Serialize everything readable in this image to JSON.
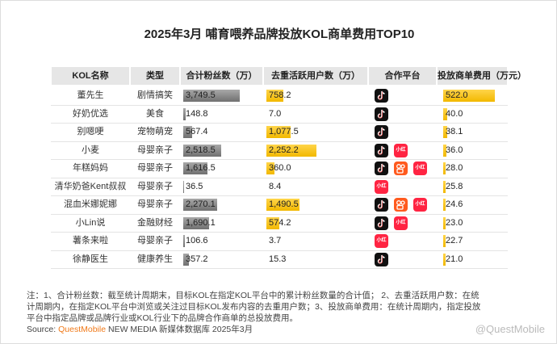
{
  "title": "2025年3月 哺育喂养品牌投放KOL商单费用TOP10",
  "table": {
    "headers": [
      "KOL名称",
      "类型",
      "合计粉丝数（万）",
      "去重活跃用户数（万）",
      "合作平台",
      "投放商单费用（万元）"
    ],
    "platform_label": "小红书",
    "rows": [
      {
        "name": "董先生",
        "type": "剧情搞笑",
        "fans": 3749.5,
        "fans_label": "3,749.5",
        "users": 758.2,
        "users_label": "758.2",
        "fee": 522.0,
        "fee_label": "522.0"
      },
      {
        "name": "好奶优选",
        "type": "美食",
        "fans": 148.8,
        "fans_label": "148.8",
        "users": 7.0,
        "users_label": "7.0",
        "fee": 40.0,
        "fee_label": "40.0"
      },
      {
        "name": "别嗯哽",
        "type": "宠物萌宠",
        "fans": 567.4,
        "fans_label": "567.4",
        "users": 1077.5,
        "users_label": "1,077.5",
        "fee": 38.1,
        "fee_label": "38.1"
      },
      {
        "name": "小麦",
        "type": "母婴亲子",
        "fans": 2518.5,
        "fans_label": "2,518.5",
        "users": 2252.2,
        "users_label": "2,252.2",
        "fee": 36.0,
        "fee_label": "36.0"
      },
      {
        "name": "年糕妈妈",
        "type": "母婴亲子",
        "fans": 1616.5,
        "fans_label": "1,616.5",
        "users": 360.0,
        "users_label": "360.0",
        "fee": 28.0,
        "fee_label": "28.0"
      },
      {
        "name": "清华奶爸Kent叔叔",
        "type": "母婴亲子",
        "fans": 36.5,
        "fans_label": "36.5",
        "users": 8.4,
        "users_label": "8.4",
        "fee": 25.8,
        "fee_label": "25.8"
      },
      {
        "name": "混血米娜妮娜",
        "type": "母婴亲子",
        "fans": 2270.1,
        "fans_label": "2,270.1",
        "users": 1490.5,
        "users_label": "1,490.5",
        "fee": 24.6,
        "fee_label": "24.6"
      },
      {
        "name": "小Lin说",
        "type": "金融财经",
        "fans": 1690.1,
        "fans_label": "1,690.1",
        "users": 574.2,
        "users_label": "574.2",
        "fee": 23.0,
        "fee_label": "23.0"
      },
      {
        "name": "薯条来啦",
        "type": "母婴亲子",
        "fans": 106.6,
        "fans_label": "106.6",
        "users": 3.7,
        "users_label": "3.7",
        "fee": 22.7,
        "fee_label": "22.7"
      },
      {
        "name": "徐静医生",
        "type": "健康养生",
        "fans": 357.2,
        "fans_label": "357.2",
        "users": 15.3,
        "users_label": "15.3",
        "fee": 21.0,
        "fee_label": "21.0"
      }
    ]
  },
  "notes": [
    "注：1、合计粉丝数：截至统计周期末，目标KOL在指定KOL平台中的累计粉丝数量的合计值； 2、去重活跃用户数：在统",
    "计周期内，在指定KOL平台中浏览或关注过目标KOL发布内容的去重用户数；3、投放商单费用：在统计周期内，指定投放",
    "平台中指定品牌或品牌行业或KOL行业下的品牌合作商单的总投放费用。"
  ],
  "source": {
    "prefix": "Source:",
    "brand": "QuestMobile",
    "rest": "NEW MEDIA 新媒体数据库 2025年3月"
  },
  "watermark": "@QuestMobile"
}
